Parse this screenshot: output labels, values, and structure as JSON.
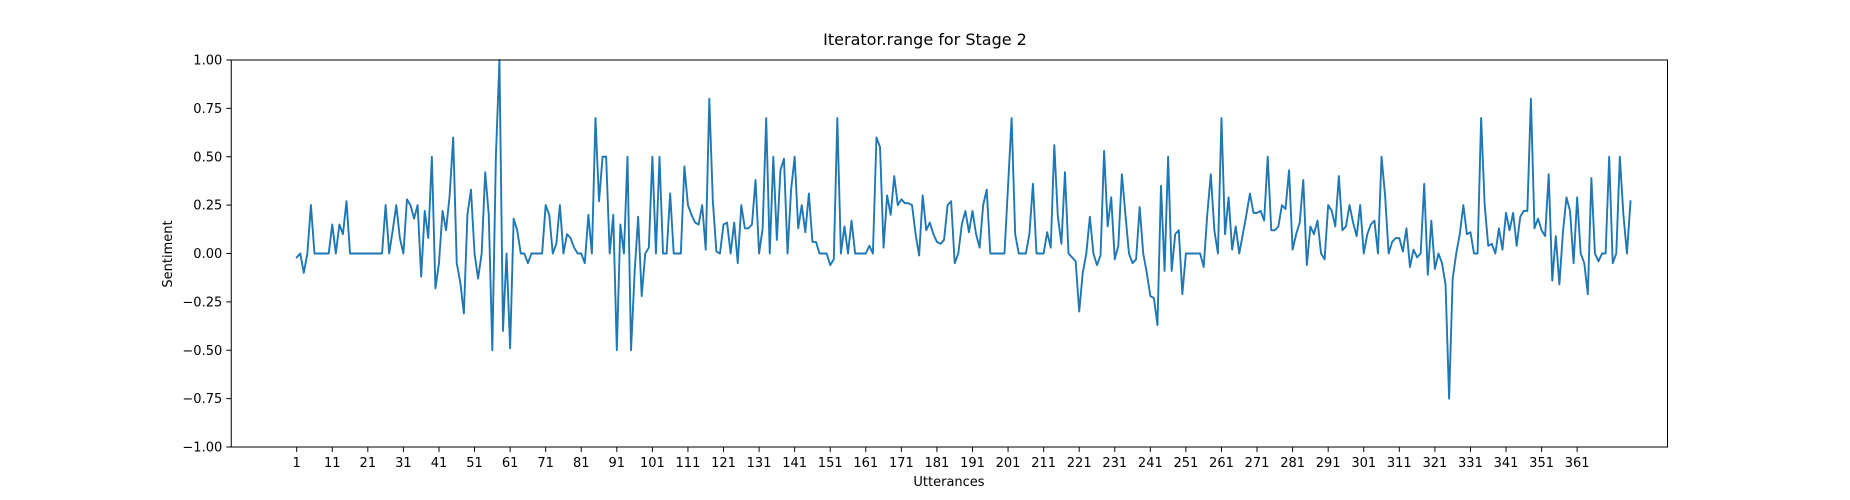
{
  "chart_data": {
    "type": "line",
    "title": "Iterator.range for Stage 2",
    "xlabel": "Utterances",
    "ylabel": "Sentiment",
    "ylim": [
      -1.0,
      1.0
    ],
    "xlim": [
      -17.4,
      386.4
    ],
    "grid": false,
    "line_color": "#1f77b4",
    "y_ticks": [
      "1.00",
      "0.75",
      "0.50",
      "0.25",
      "0.00",
      "−0.25",
      "−0.50",
      "−0.75",
      "−1.00"
    ],
    "x_ticks": [
      "1",
      "11",
      "21",
      "31",
      "41",
      "51",
      "61",
      "71",
      "81",
      "91",
      "101",
      "111",
      "121",
      "131",
      "141",
      "151",
      "161",
      "171",
      "181",
      "191",
      "201",
      "211",
      "221",
      "231",
      "241",
      "251",
      "261",
      "271",
      "281",
      "291",
      "301",
      "311",
      "321",
      "331",
      "341",
      "351",
      "361"
    ],
    "series": [
      {
        "x_start": 1,
        "values": [
          -0.02,
          0.0,
          -0.1,
          0.0,
          0.25,
          0.0,
          0.0,
          0.0,
          0.0,
          0.0,
          0.15,
          0.0,
          0.15,
          0.1,
          0.27,
          0.0,
          0.0,
          0.0,
          0.0,
          0.0,
          0.0,
          0.0,
          0.0,
          0.0,
          0.0,
          0.25,
          0.0,
          0.12,
          0.25,
          0.08,
          0.0,
          0.28,
          0.25,
          0.18,
          0.25,
          -0.12,
          0.22,
          0.08,
          0.5,
          -0.18,
          -0.05,
          0.22,
          0.12,
          0.3,
          0.6,
          -0.05,
          -0.15,
          -0.31,
          0.2,
          0.33,
          0.0,
          -0.13,
          0.0,
          0.42,
          0.2,
          -0.5,
          0.5,
          1.0,
          -0.4,
          0.0,
          -0.49,
          0.18,
          0.12,
          0.0,
          0.0,
          -0.05,
          0.0,
          0.0,
          0.0,
          0.0,
          0.25,
          0.2,
          0.0,
          0.05,
          0.25,
          0.0,
          0.1,
          0.08,
          0.03,
          0.0,
          0.0,
          -0.05,
          0.2,
          0.0,
          0.7,
          0.27,
          0.5,
          0.5,
          0.0,
          0.2,
          -0.5,
          0.15,
          0.0,
          0.5,
          -0.5,
          -0.1,
          0.19,
          -0.22,
          0.0,
          0.03,
          0.5,
          0.0,
          0.5,
          0.0,
          0.0,
          0.31,
          0.0,
          0.0,
          0.0,
          0.45,
          0.25,
          0.2,
          0.16,
          0.15,
          0.25,
          0.02,
          0.8,
          0.27,
          0.01,
          0.0,
          0.15,
          0.16,
          0.0,
          0.16,
          -0.05,
          0.25,
          0.13,
          0.13,
          0.15,
          0.38,
          0.0,
          0.13,
          0.7,
          0.0,
          0.5,
          0.07,
          0.43,
          0.49,
          0.0,
          0.33,
          0.5,
          0.13,
          0.25,
          0.11,
          0.31,
          0.06,
          0.06,
          0.0,
          0.0,
          0.0,
          -0.06,
          -0.03,
          0.7,
          0.0,
          0.14,
          0.0,
          0.17,
          0.0,
          0.0,
          0.0,
          0.0,
          0.04,
          0.0,
          0.6,
          0.55,
          0.03,
          0.3,
          0.2,
          0.4,
          0.25,
          0.28,
          0.26,
          0.26,
          0.25,
          0.1,
          -0.01,
          0.3,
          0.12,
          0.16,
          0.1,
          0.06,
          0.05,
          0.07,
          0.25,
          0.27,
          -0.05,
          0.0,
          0.15,
          0.22,
          0.11,
          0.22,
          0.1,
          0.03,
          0.25,
          0.33,
          0.0,
          0.0,
          0.0,
          0.0,
          0.0,
          0.35,
          0.7,
          0.1,
          0.0,
          0.0,
          0.0,
          0.1,
          0.36,
          0.0,
          0.0,
          0.0,
          0.11,
          0.03,
          0.56,
          0.19,
          0.05,
          0.42,
          0.0,
          -0.02,
          -0.04,
          -0.3,
          -0.1,
          0.0,
          0.19,
          0.0,
          -0.06,
          -0.01,
          0.53,
          0.14,
          0.29,
          -0.03,
          0.04,
          0.41,
          0.2,
          0.0,
          -0.05,
          -0.03,
          0.24,
          0.0,
          -0.1,
          -0.22,
          -0.23,
          -0.37,
          0.35,
          -0.09,
          0.5,
          -0.09,
          0.1,
          0.12,
          -0.21,
          0.0,
          0.0,
          0.0,
          0.0,
          0.0,
          -0.07,
          0.2,
          0.41,
          0.12,
          0.0,
          0.7,
          0.1,
          0.29,
          0.02,
          0.14,
          0.0,
          0.1,
          0.2,
          0.31,
          0.21,
          0.21,
          0.22,
          0.17,
          0.5,
          0.12,
          0.12,
          0.14,
          0.25,
          0.23,
          0.43,
          0.02,
          0.1,
          0.16,
          0.38,
          -0.06,
          0.14,
          0.1,
          0.17,
          0.0,
          -0.03,
          0.25,
          0.22,
          0.14,
          0.4,
          0.12,
          0.14,
          0.25,
          0.16,
          0.09,
          0.25,
          0.0,
          0.1,
          0.15,
          0.17,
          0.0,
          0.5,
          0.3,
          0.0,
          0.06,
          0.08,
          0.08,
          0.01,
          0.13,
          -0.07,
          0.02,
          -0.02,
          0.0,
          0.36,
          -0.11,
          0.17,
          -0.08,
          0.0,
          -0.05,
          -0.16,
          -0.75,
          -0.13,
          0.0,
          0.1,
          0.25,
          0.1,
          0.11,
          0.0,
          0.0,
          0.7,
          0.25,
          0.04,
          0.05,
          0.0,
          0.13,
          0.02,
          0.21,
          0.12,
          0.21,
          0.04,
          0.19,
          0.22,
          0.22,
          0.8,
          0.13,
          0.18,
          0.12,
          0.09,
          0.41,
          -0.14,
          0.09,
          -0.16,
          0.11,
          0.29,
          0.22,
          -0.05,
          0.29,
          0.0,
          -0.05,
          -0.21,
          0.39,
          0.0,
          -0.04,
          0.0,
          0.0,
          0.5,
          -0.05,
          0.0,
          0.5,
          0.2,
          0.0,
          0.27
        ]
      }
    ]
  }
}
